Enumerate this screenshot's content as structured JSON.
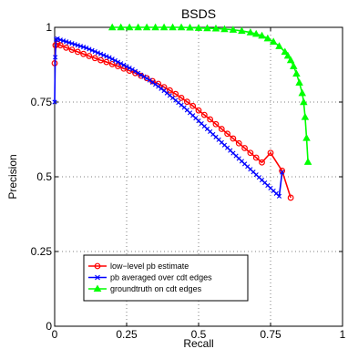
{
  "chart_data": {
    "type": "line",
    "title": "BSDS",
    "xlabel": "Recall",
    "ylabel": "Precision",
    "xlim": [
      0,
      1
    ],
    "ylim": [
      0,
      1
    ],
    "xticks": [
      0,
      0.25,
      0.5,
      0.75,
      1
    ],
    "yticks": [
      0,
      0.25,
      0.5,
      0.75,
      1
    ],
    "xtick_labels": [
      "0",
      "0.25",
      "0.5",
      "0.75",
      "1"
    ],
    "ytick_labels": [
      "0",
      "0.25",
      "0.5",
      "0.75",
      "1"
    ],
    "grid": true,
    "legend_position": "bottom-left",
    "series": [
      {
        "name": "low−level pb estimate",
        "color": "#ff0000",
        "marker": "circle",
        "x": [
          0.0,
          0.003,
          0.01,
          0.02,
          0.04,
          0.06,
          0.08,
          0.1,
          0.12,
          0.14,
          0.16,
          0.18,
          0.2,
          0.22,
          0.24,
          0.26,
          0.28,
          0.3,
          0.32,
          0.34,
          0.36,
          0.38,
          0.4,
          0.42,
          0.44,
          0.46,
          0.48,
          0.5,
          0.52,
          0.54,
          0.56,
          0.58,
          0.6,
          0.62,
          0.64,
          0.66,
          0.68,
          0.7,
          0.72,
          0.75,
          0.79,
          0.82
        ],
        "y": [
          0.88,
          0.94,
          0.945,
          0.94,
          0.932,
          0.925,
          0.918,
          0.911,
          0.904,
          0.897,
          0.89,
          0.884,
          0.877,
          0.87,
          0.862,
          0.855,
          0.847,
          0.838,
          0.83,
          0.82,
          0.811,
          0.8,
          0.789,
          0.777,
          0.764,
          0.751,
          0.737,
          0.722,
          0.707,
          0.692,
          0.676,
          0.66,
          0.644,
          0.628,
          0.612,
          0.596,
          0.58,
          0.564,
          0.548,
          0.58,
          0.52,
          0.43
        ]
      },
      {
        "name": "pb averaged over cdt edges",
        "color": "#0000ff",
        "marker": "x",
        "x": [
          0.0,
          0.002,
          0.005,
          0.01,
          0.02,
          0.03,
          0.04,
          0.05,
          0.06,
          0.07,
          0.08,
          0.09,
          0.1,
          0.11,
          0.12,
          0.13,
          0.14,
          0.15,
          0.16,
          0.17,
          0.18,
          0.19,
          0.2,
          0.21,
          0.22,
          0.23,
          0.24,
          0.25,
          0.26,
          0.27,
          0.28,
          0.29,
          0.3,
          0.31,
          0.32,
          0.33,
          0.34,
          0.35,
          0.36,
          0.37,
          0.38,
          0.39,
          0.4,
          0.41,
          0.42,
          0.43,
          0.44,
          0.45,
          0.46,
          0.47,
          0.48,
          0.49,
          0.5,
          0.51,
          0.52,
          0.53,
          0.54,
          0.55,
          0.56,
          0.57,
          0.58,
          0.59,
          0.6,
          0.61,
          0.62,
          0.63,
          0.64,
          0.65,
          0.66,
          0.67,
          0.68,
          0.69,
          0.7,
          0.71,
          0.72,
          0.73,
          0.74,
          0.75,
          0.76,
          0.77,
          0.78,
          0.79
        ],
        "y": [
          0.75,
          0.9,
          0.96,
          0.962,
          0.958,
          0.955,
          0.952,
          0.949,
          0.946,
          0.943,
          0.94,
          0.937,
          0.934,
          0.931,
          0.927,
          0.923,
          0.919,
          0.915,
          0.911,
          0.907,
          0.903,
          0.899,
          0.894,
          0.889,
          0.884,
          0.879,
          0.874,
          0.869,
          0.864,
          0.859,
          0.853,
          0.847,
          0.841,
          0.835,
          0.829,
          0.823,
          0.816,
          0.809,
          0.802,
          0.795,
          0.788,
          0.78,
          0.772,
          0.764,
          0.756,
          0.748,
          0.74,
          0.732,
          0.723,
          0.714,
          0.705,
          0.696,
          0.687,
          0.678,
          0.669,
          0.66,
          0.651,
          0.642,
          0.633,
          0.624,
          0.615,
          0.606,
          0.597,
          0.588,
          0.579,
          0.57,
          0.561,
          0.552,
          0.543,
          0.534,
          0.525,
          0.516,
          0.507,
          0.498,
          0.489,
          0.48,
          0.471,
          0.462,
          0.453,
          0.444,
          0.435,
          0.515
        ]
      },
      {
        "name": "groundtruth on cdt edges",
        "color": "#00ff00",
        "marker": "triangle",
        "x": [
          0.2,
          0.23,
          0.26,
          0.29,
          0.32,
          0.35,
          0.38,
          0.41,
          0.44,
          0.47,
          0.5,
          0.53,
          0.56,
          0.59,
          0.62,
          0.65,
          0.68,
          0.7,
          0.72,
          0.74,
          0.76,
          0.78,
          0.8,
          0.81,
          0.82,
          0.83,
          0.84,
          0.85,
          0.86,
          0.865,
          0.87,
          0.875,
          0.88
        ],
        "y": [
          1.0,
          1.0,
          1.0,
          1.0,
          1.0,
          1.0,
          1.0,
          1.0,
          1.0,
          0.999,
          0.998,
          0.997,
          0.996,
          0.994,
          0.992,
          0.988,
          0.983,
          0.978,
          0.972,
          0.963,
          0.952,
          0.937,
          0.918,
          0.905,
          0.89,
          0.87,
          0.845,
          0.815,
          0.78,
          0.75,
          0.7,
          0.63,
          0.55
        ]
      }
    ]
  }
}
